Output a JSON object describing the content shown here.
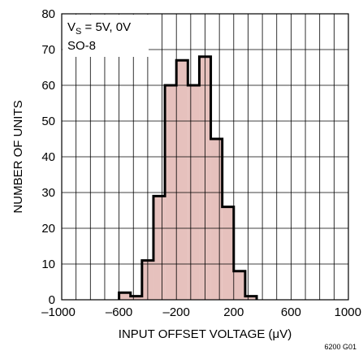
{
  "chart_data": {
    "type": "bar",
    "xlabel": "INPUT OFFSET VOLTAGE (μV)",
    "ylabel": "NUMBER OF UNITS",
    "xlim": [
      -1000,
      1000
    ],
    "ylim": [
      0,
      80
    ],
    "x_ticks": [
      -1000,
      -600,
      -200,
      200,
      600,
      1000
    ],
    "x_tick_labels": [
      "–1000",
      "–600",
      "–200",
      "200",
      "600",
      "1000"
    ],
    "y_ticks": [
      0,
      10,
      20,
      30,
      40,
      50,
      60,
      70,
      80
    ],
    "y_tick_labels": [
      "0",
      "10",
      "20",
      "30",
      "40",
      "50",
      "60",
      "70",
      "80"
    ],
    "grid": true,
    "bin_width": 80,
    "bins": [
      {
        "start": -600,
        "end": -520,
        "count": 2
      },
      {
        "start": -520,
        "end": -440,
        "count": 1
      },
      {
        "start": -440,
        "end": -360,
        "count": 11
      },
      {
        "start": -360,
        "end": -280,
        "count": 29
      },
      {
        "start": -280,
        "end": -200,
        "count": 60
      },
      {
        "start": -200,
        "end": -120,
        "count": 67
      },
      {
        "start": -120,
        "end": -40,
        "count": 60
      },
      {
        "start": -40,
        "end": 40,
        "count": 68
      },
      {
        "start": 40,
        "end": 120,
        "count": 45
      },
      {
        "start": 120,
        "end": 200,
        "count": 26
      },
      {
        "start": 200,
        "end": 280,
        "count": 8
      },
      {
        "start": 280,
        "end": 360,
        "count": 1
      }
    ],
    "annotations": {
      "condition_main": "V",
      "condition_sub": "S",
      "condition_rest": " = 5V, 0V",
      "package": "SO-8"
    },
    "figure_id": "6200 G01",
    "bar_fill": "#e6c1bd",
    "bar_stroke": "#000000"
  }
}
